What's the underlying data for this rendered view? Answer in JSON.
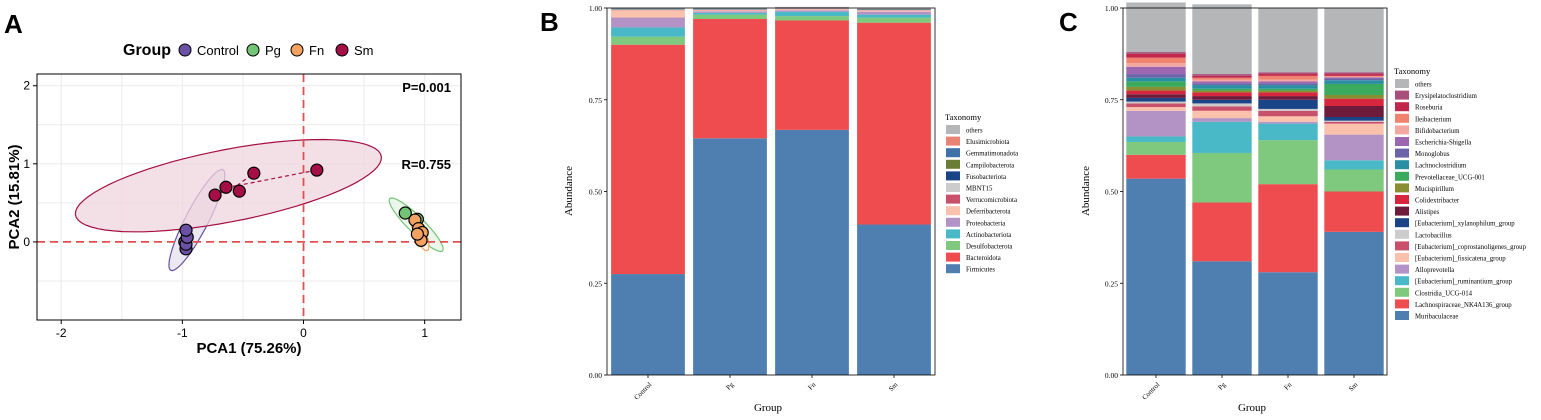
{
  "panels": {
    "A": {
      "letter": "A"
    },
    "B": {
      "letter": "B"
    },
    "C": {
      "letter": "C"
    }
  },
  "chart_data": [
    {
      "type": "scatter",
      "panel": "A",
      "legend_title": "Group",
      "xlabel": "PCA1 (75.26%)",
      "ylabel": "PCA2 (15.81%)",
      "xlim": [
        -2.2,
        1.3
      ],
      "ylim": [
        -1.0,
        2.15
      ],
      "xticks": [
        -2,
        -1,
        0,
        1
      ],
      "yticks": [
        0,
        1,
        2
      ],
      "grid": true,
      "legend_position": "top",
      "annotations": [
        "P=0.001",
        "R=0.755"
      ],
      "reference_lines": {
        "x": 0,
        "y": 0
      },
      "series": [
        {
          "name": "Control",
          "color": "#6a51a3",
          "points": [
            [
              -0.97,
              -0.09
            ],
            [
              -0.98,
              0.0
            ],
            [
              -0.97,
              -0.03
            ],
            [
              -0.96,
              0.06
            ],
            [
              -0.97,
              0.15
            ]
          ],
          "centroid": [
            -0.96,
            0.05
          ],
          "ellipse": {
            "cx": -0.88,
            "cy": 0.28,
            "rx": 0.68,
            "ry": 0.1,
            "angle_deg": 72
          }
        },
        {
          "name": "Pg",
          "color": "#74c476",
          "points": [
            [
              0.84,
              0.37
            ],
            [
              0.94,
              0.29
            ]
          ],
          "centroid": [
            0.92,
            0.18
          ],
          "ellipse": {
            "cx": 0.93,
            "cy": 0.22,
            "rx": 0.4,
            "ry": 0.08,
            "angle_deg": -58
          }
        },
        {
          "name": "Fn",
          "color": "#f4a261",
          "points": [
            [
              0.92,
              0.28
            ],
            [
              0.95,
              0.17
            ],
            [
              0.96,
              0.08
            ],
            [
              0.98,
              0.12
            ],
            [
              0.97,
              0.02
            ],
            [
              0.94,
              0.1
            ]
          ],
          "centroid": [
            0.95,
            0.12
          ],
          "ellipse": {
            "cx": 0.96,
            "cy": 0.12,
            "rx": 0.24,
            "ry": 0.05,
            "angle_deg": -76
          }
        },
        {
          "name": "Sm",
          "color": "#a50f45",
          "points": [
            [
              -0.73,
              0.6
            ],
            [
              -0.64,
              0.7
            ],
            [
              -0.53,
              0.65
            ],
            [
              -0.41,
              0.88
            ],
            [
              0.11,
              0.92
            ]
          ],
          "centroid": [
            -0.55,
            0.72
          ],
          "ellipse": {
            "cx": -0.62,
            "cy": 0.72,
            "rx": 1.32,
            "ry": 0.45,
            "angle_deg": 18
          }
        }
      ]
    },
    {
      "type": "bar",
      "panel": "B",
      "stacked": true,
      "xlabel": "Group",
      "ylabel": "Abundance",
      "legend_title": "Taxonomy",
      "legend_position": "right",
      "ylim": [
        0,
        1
      ],
      "yticks": [
        "0.00",
        "0.25",
        "0.50",
        "0.75",
        "1.00"
      ],
      "categories": [
        "Control",
        "Pg",
        "Fn",
        "Sm"
      ],
      "series": [
        {
          "name": "Firmicutes",
          "color": "#4e7fb0",
          "values": [
            0.275,
            0.645,
            0.668,
            0.41
          ]
        },
        {
          "name": "Bacteroidota",
          "color": "#ef4c4f",
          "values": [
            0.625,
            0.325,
            0.298,
            0.55
          ]
        },
        {
          "name": "Desulfobacterota",
          "color": "#7fc97f",
          "values": [
            0.022,
            0.012,
            0.012,
            0.014
          ]
        },
        {
          "name": "Actinobacteriota",
          "color": "#49b8c7",
          "values": [
            0.025,
            0.005,
            0.012,
            0.008
          ]
        },
        {
          "name": "Proteobacteria",
          "color": "#b393c5",
          "values": [
            0.027,
            0.004,
            0.004,
            0.008
          ]
        },
        {
          "name": "Deferribacterota",
          "color": "#fac2ac",
          "values": [
            0.02,
            0.003,
            0.003,
            0.003
          ]
        },
        {
          "name": "Verrucomicrobiota",
          "color": "#c9506a",
          "values": [
            0.001,
            0.001,
            0.001,
            0.001
          ]
        },
        {
          "name": "MBNT15",
          "color": "#cccccc",
          "values": [
            0.001,
            0.001,
            0.001,
            0.001
          ]
        },
        {
          "name": "Fusobacteriota",
          "color": "#1a4488",
          "values": [
            0.001,
            0.001,
            0.001,
            0.001
          ]
        },
        {
          "name": "Campilobacterota",
          "color": "#6b7d35",
          "values": [
            0.001,
            0.001,
            0.001,
            0.001
          ]
        },
        {
          "name": "Gemmatimonadota",
          "color": "#3e72a8",
          "values": [
            0.001,
            0.001,
            0.001,
            0.001
          ]
        },
        {
          "name": "Elusimicrobiota",
          "color": "#e98374",
          "values": [
            0.0005,
            0.0005,
            0.0005,
            0.0005
          ]
        },
        {
          "name": "others",
          "color": "#b4b6b8",
          "values": [
            0.0005,
            0.0015,
            0.0005,
            0.0005
          ]
        }
      ]
    },
    {
      "type": "bar",
      "panel": "C",
      "stacked": true,
      "xlabel": "Group",
      "ylabel": "Abundance",
      "legend_title": "Taxonomy",
      "legend_position": "right",
      "ylim": [
        0,
        1
      ],
      "yticks": [
        "0.00",
        "0.25",
        "0.50",
        "0.75",
        "1.00"
      ],
      "categories": [
        "Control",
        "Pg",
        "Fn",
        "Sm"
      ],
      "series": [
        {
          "name": "Muribaculaceae",
          "color": "#4e7fb0",
          "values": [
            0.535,
            0.31,
            0.28,
            0.39
          ]
        },
        {
          "name": "Lachnospiraceae_NK4A136_group",
          "color": "#ef4c4f",
          "values": [
            0.065,
            0.16,
            0.24,
            0.11
          ]
        },
        {
          "name": "Clostridia_UCG-014",
          "color": "#7fc97f",
          "values": [
            0.035,
            0.135,
            0.12,
            0.06
          ]
        },
        {
          "name": "[Eubacterium]_ruminantium_group",
          "color": "#49b8c7",
          "values": [
            0.015,
            0.085,
            0.045,
            0.025
          ]
        },
        {
          "name": "Alloprevotella",
          "color": "#b393c5",
          "values": [
            0.07,
            0.01,
            0.005,
            0.07
          ]
        },
        {
          "name": "[Eubacterium]_fissicatena_group",
          "color": "#fac2ac",
          "values": [
            0.01,
            0.02,
            0.015,
            0.03
          ]
        },
        {
          "name": "[Eubacterium]_coprostanoligenes_group",
          "color": "#c9506a",
          "values": [
            0.01,
            0.012,
            0.015,
            0.005
          ]
        },
        {
          "name": "Lactobacillus",
          "color": "#cccccc",
          "values": [
            0.005,
            0.008,
            0.005,
            0.003
          ]
        },
        {
          "name": "[Eubacterium]_xylanophilum_group",
          "color": "#1a4488",
          "values": [
            0.01,
            0.01,
            0.025,
            0.01
          ]
        },
        {
          "name": "Alistipes",
          "color": "#6e1b3b",
          "values": [
            0.01,
            0.01,
            0.01,
            0.03
          ]
        },
        {
          "name": "Colidextribacter",
          "color": "#d7263d",
          "values": [
            0.01,
            0.01,
            0.01,
            0.02
          ]
        },
        {
          "name": "Mucispirillum",
          "color": "#8a8e33",
          "values": [
            0.01,
            0.005,
            0.005,
            0.01
          ]
        },
        {
          "name": "Prevotellaceae_UCG-001",
          "color": "#3aaa5c",
          "values": [
            0.015,
            0.005,
            0.005,
            0.03
          ]
        },
        {
          "name": "Lachnoclostridium",
          "color": "#2b8fa3",
          "values": [
            0.01,
            0.01,
            0.01,
            0.01
          ]
        },
        {
          "name": "Monoglobus",
          "color": "#6b64a8",
          "values": [
            0.01,
            0.005,
            0.005,
            0.005
          ]
        },
        {
          "name": "Escherichia-Shigella",
          "color": "#9c66b0",
          "values": [
            0.02,
            0.005,
            0.005,
            0.003
          ]
        },
        {
          "name": "Bifidobacterium",
          "color": "#f2a8a0",
          "values": [
            0.01,
            0.005,
            0.005,
            0.002
          ]
        },
        {
          "name": "Ileibacterium",
          "color": "#f08270",
          "values": [
            0.015,
            0.005,
            0.01,
            0.002
          ]
        },
        {
          "name": "Roseburia",
          "color": "#c1274a",
          "values": [
            0.01,
            0.005,
            0.005,
            0.005
          ]
        },
        {
          "name": "Erysipelatoclostridium",
          "color": "#a8507a",
          "values": [
            0.005,
            0.005,
            0.005,
            0.005
          ]
        },
        {
          "name": "others",
          "color": "#b4b6b8",
          "values": [
            0.135,
            0.19,
            0.175,
            0.175
          ]
        }
      ]
    }
  ]
}
